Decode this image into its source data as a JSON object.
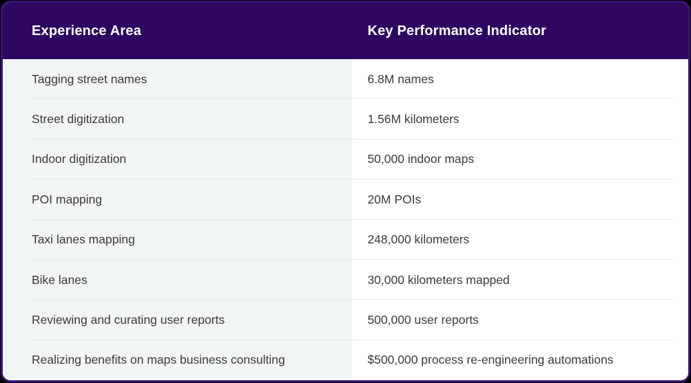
{
  "colors": {
    "frame_bg": "#000000",
    "card_border": "#3a1272",
    "header_bg": "#2e0763",
    "header_text": "#ffffff",
    "left_column_bg": "#f1f5f6",
    "right_column_bg": "#ffffff",
    "divider": "#e6e9ea",
    "body_text": "#3a3a3c"
  },
  "chart_data": {
    "type": "table",
    "title": "",
    "columns": [
      "Experience Area",
      "Key Performance Indicator"
    ],
    "rows": [
      [
        "Tagging street names",
        "6.8M names"
      ],
      [
        "Street digitization",
        "1.56M kilometers"
      ],
      [
        "Indoor digitization",
        "50,000 indoor maps"
      ],
      [
        "POI mapping",
        "20M POIs"
      ],
      [
        "Taxi lanes mapping",
        "248,000 kilometers"
      ],
      [
        "Bike lanes",
        "30,000 kilometers mapped"
      ],
      [
        "Reviewing and curating user reports",
        "500,000 user reports"
      ],
      [
        "Realizing benefits on maps business consulting",
        "$500,000 process re-engineering automations"
      ]
    ]
  },
  "table": {
    "header": {
      "experience_area": "Experience Area",
      "kpi": "Key Performance Indicator"
    },
    "rows": [
      {
        "area": "Tagging street names",
        "kpi": "6.8M names"
      },
      {
        "area": "Street digitization",
        "kpi": "1.56M kilometers"
      },
      {
        "area": "Indoor digitization",
        "kpi": "50,000 indoor maps"
      },
      {
        "area": "POI mapping",
        "kpi": "20M POIs"
      },
      {
        "area": "Taxi lanes mapping",
        "kpi": "248,000 kilometers"
      },
      {
        "area": "Bike lanes",
        "kpi": "30,000 kilometers mapped"
      },
      {
        "area": "Reviewing and curating user reports",
        "kpi": "500,000 user reports"
      },
      {
        "area": "Realizing benefits on maps business consulting",
        "kpi": "$500,000 process re-engineering automations"
      }
    ]
  }
}
